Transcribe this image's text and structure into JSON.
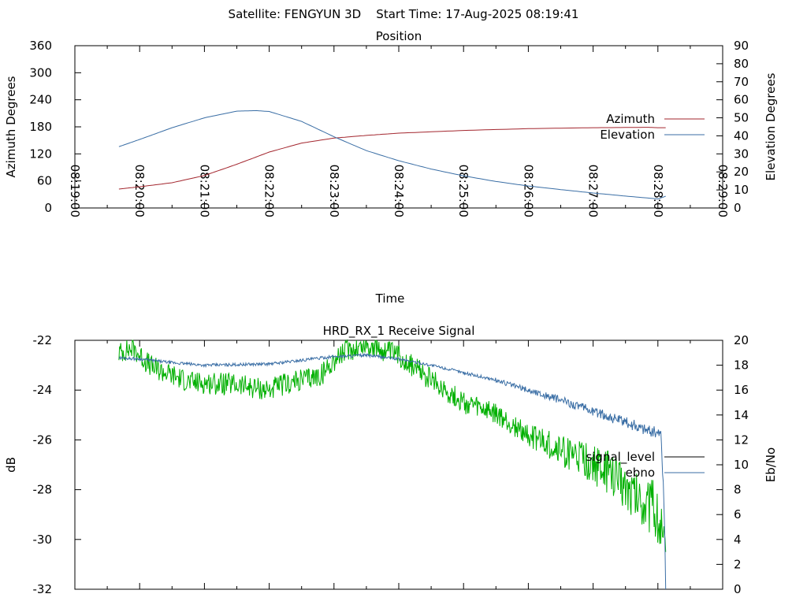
{
  "header": "Satellite: FENGYUN 3D    Start Time: 17-Aug-2025 08:19:41",
  "chart_data": [
    {
      "type": "line",
      "title": "Position",
      "xlabel": "Time",
      "ylabel": "Azimuth Degrees",
      "y2label": "Elevation Degrees",
      "x_tick_labels": [
        "08:19:00",
        "08:20:00",
        "08:21:00",
        "08:22:00",
        "08:23:00",
        "08:24:00",
        "08:25:00",
        "08:26:00",
        "08:27:00",
        "08:28:00",
        "08:29:00"
      ],
      "x_range_minutes": [
        0,
        10
      ],
      "ylim": [
        0,
        360
      ],
      "y2lim": [
        0,
        90
      ],
      "y_ticks": [
        0,
        60,
        120,
        180,
        240,
        300,
        360
      ],
      "y2_ticks": [
        0,
        10,
        20,
        30,
        40,
        50,
        60,
        70,
        80,
        90
      ],
      "legend_position": "right",
      "grid": false,
      "series": [
        {
          "name": "Azimuth",
          "axis": "left",
          "color": "#a3262e",
          "x": [
            0.68,
            1.0,
            1.5,
            2.0,
            2.5,
            3.0,
            3.5,
            4.0,
            4.5,
            5.0,
            6.0,
            7.0,
            8.0,
            8.85,
            9.0,
            9.12
          ],
          "y": [
            42,
            47,
            56,
            72,
            97,
            124,
            144,
            155,
            161,
            166,
            172,
            176,
            178,
            179,
            178,
            178
          ]
        },
        {
          "name": "Elevation",
          "axis": "right",
          "color": "#3a6ea5",
          "x": [
            0.68,
            1.0,
            1.5,
            2.0,
            2.5,
            2.8,
            3.0,
            3.5,
            4.0,
            4.5,
            5.0,
            5.5,
            6.0,
            6.5,
            7.0,
            7.5,
            8.0,
            8.5,
            9.0,
            9.12
          ],
          "y": [
            34,
            38,
            44.5,
            50,
            53.7,
            54,
            53.5,
            48,
            39.5,
            31.8,
            26.2,
            21.6,
            17.8,
            14.7,
            12.2,
            10.2,
            8.3,
            6.6,
            5.0,
            6.5
          ]
        }
      ]
    },
    {
      "type": "line",
      "title": "HRD_RX_1 Receive Signal",
      "xlabel": "",
      "ylabel": "dB",
      "y2label": "Eb/No",
      "x_range_minutes": [
        0,
        10
      ],
      "ylim": [
        -32,
        -22
      ],
      "y2lim": [
        0,
        20
      ],
      "y_ticks": [
        -32,
        -30,
        -28,
        -26,
        -24,
        -22
      ],
      "y2_ticks": [
        0,
        2,
        4,
        6,
        8,
        10,
        12,
        14,
        16,
        18,
        20
      ],
      "legend_position": "right",
      "grid": false,
      "legend_entries": [
        {
          "name": "signal_level",
          "color": "#000000"
        },
        {
          "name": "ebno",
          "color": "#3a6ea5"
        }
      ],
      "series": [
        {
          "name": "signal_level",
          "axis": "left",
          "color": "#00b000",
          "noise": 0.45,
          "x": [
            0.68,
            0.9,
            1.0,
            1.2,
            1.5,
            1.8,
            2.0,
            2.5,
            3.0,
            3.2,
            3.5,
            3.8,
            4.0,
            4.2,
            4.5,
            5.0,
            5.5,
            6.0,
            6.5,
            7.0,
            7.5,
            8.0,
            8.3,
            8.5,
            8.7,
            8.95,
            9.05,
            9.1,
            9.12
          ],
          "y": [
            -22.5,
            -22.3,
            -22.6,
            -23.1,
            -23.4,
            -23.7,
            -23.7,
            -23.8,
            -24.0,
            -23.8,
            -23.6,
            -23.4,
            -22.8,
            -22.4,
            -22.2,
            -22.6,
            -23.6,
            -24.5,
            -25.0,
            -25.8,
            -26.4,
            -27.0,
            -27.4,
            -27.8,
            -28.3,
            -28.8,
            -29.5,
            -30.5,
            -31.0
          ]
        },
        {
          "name": "ebno",
          "axis": "right",
          "color": "#3a6ea5",
          "noise": 0.3,
          "x": [
            0.68,
            1.0,
            1.5,
            2.0,
            3.0,
            4.0,
            4.5,
            5.0,
            5.5,
            6.0,
            6.5,
            7.0,
            7.5,
            8.0,
            8.5,
            8.9,
            9.05,
            9.1,
            9.12
          ],
          "y": [
            18.6,
            18.5,
            18.2,
            18.0,
            18.1,
            18.7,
            18.8,
            18.5,
            18.0,
            17.4,
            16.8,
            16.0,
            15.2,
            14.3,
            13.4,
            12.7,
            12.5,
            6.0,
            0.0
          ]
        }
      ]
    }
  ]
}
